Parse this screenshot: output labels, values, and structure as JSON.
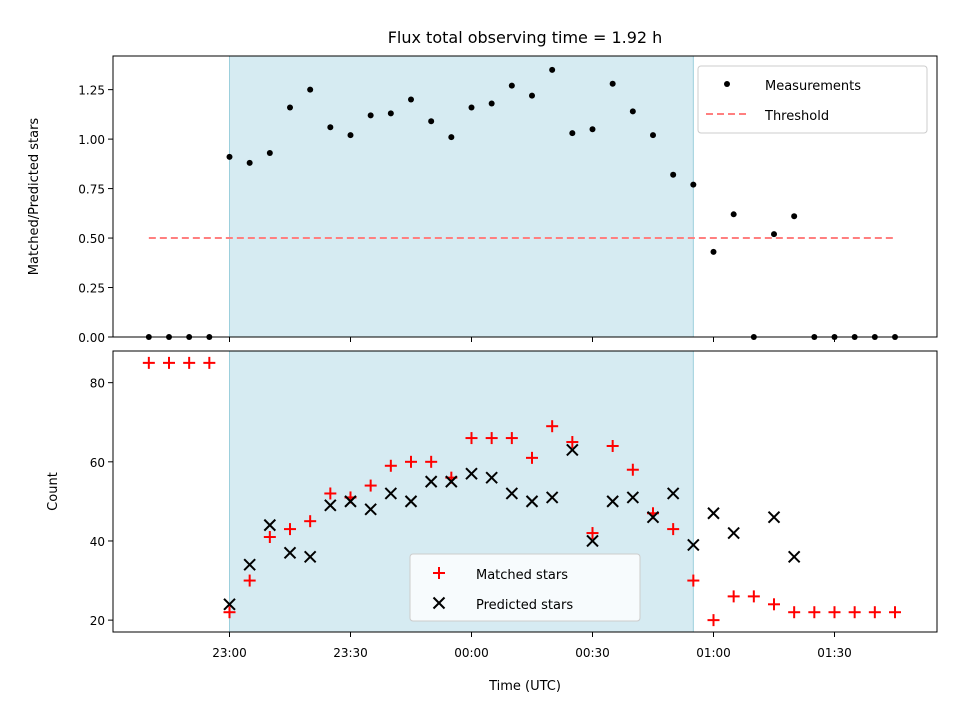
{
  "title": "Flux total observing time = 1.92 h",
  "chart_data": [
    {
      "type": "scatter",
      "title": "Flux total observing time = 1.92 h",
      "xlabel": "",
      "ylabel": "Matched/Predicted stars",
      "ylim": [
        0,
        1.42
      ],
      "yticks": [
        "0.00",
        "0.25",
        "0.50",
        "0.75",
        "1.00",
        "1.25"
      ],
      "yticks_values": [
        0,
        0.25,
        0.5,
        0.75,
        1.0,
        1.25
      ],
      "grid": false,
      "legend_location": "upper right",
      "shaded_span": [
        "23:00",
        "00:55"
      ],
      "shaded_color": "#add8e6",
      "series": [
        {
          "name": "Measurements",
          "marker": "dot",
          "color": "#000000",
          "x": [
            "22:40",
            "22:45",
            "22:50",
            "22:55",
            "23:00",
            "23:05",
            "23:10",
            "23:15",
            "23:20",
            "23:25",
            "23:30",
            "23:35",
            "23:40",
            "23:45",
            "23:50",
            "23:55",
            "00:00",
            "00:05",
            "00:10",
            "00:15",
            "00:20",
            "00:25",
            "00:30",
            "00:35",
            "00:40",
            "00:45",
            "00:50",
            "00:55",
            "01:00",
            "01:05",
            "01:10",
            "01:15",
            "01:20",
            "01:25",
            "01:30",
            "01:35",
            "01:40",
            "01:45"
          ],
          "y": [
            0,
            0,
            0,
            0,
            0.91,
            0.88,
            0.93,
            1.16,
            1.25,
            1.06,
            1.02,
            1.12,
            1.13,
            1.2,
            1.09,
            1.01,
            1.16,
            1.18,
            1.27,
            1.22,
            1.35,
            1.03,
            1.05,
            1.28,
            1.14,
            1.02,
            0.82,
            0.77,
            0.43,
            0.62,
            0,
            0.52,
            0.61,
            0,
            0,
            0,
            0,
            0
          ]
        },
        {
          "name": "Threshold",
          "marker": "dashed-line",
          "color": "#ff7f7f",
          "x": [
            "22:40",
            "01:45"
          ],
          "y": [
            0.5,
            0.5
          ]
        }
      ]
    },
    {
      "type": "scatter",
      "xlabel": "Time (UTC)",
      "ylabel": "Count",
      "ylim": [
        17,
        88
      ],
      "yticks": [
        "20",
        "40",
        "60",
        "80"
      ],
      "yticks_values": [
        20,
        40,
        60,
        80
      ],
      "xticks": [
        "23:00",
        "23:30",
        "00:00",
        "00:30",
        "01:00",
        "01:30"
      ],
      "grid": false,
      "legend_location": "lower center",
      "shaded_span": [
        "23:00",
        "00:55"
      ],
      "shaded_color": "#add8e6",
      "series": [
        {
          "name": "Matched stars",
          "marker": "plus",
          "color": "#ff0000",
          "x": [
            "22:40",
            "22:45",
            "22:50",
            "22:55",
            "23:00",
            "23:05",
            "23:10",
            "23:15",
            "23:20",
            "23:25",
            "23:30",
            "23:35",
            "23:40",
            "23:45",
            "23:50",
            "23:55",
            "00:00",
            "00:05",
            "00:10",
            "00:15",
            "00:20",
            "00:25",
            "00:30",
            "00:35",
            "00:40",
            "00:45",
            "00:50",
            "00:55",
            "01:00",
            "01:05",
            "01:10",
            "01:15",
            "01:20",
            "01:25",
            "01:30",
            "01:35",
            "01:40",
            "01:45"
          ],
          "y": [
            85,
            85,
            85,
            85,
            22,
            30,
            41,
            43,
            45,
            52,
            51,
            54,
            59,
            60,
            60,
            56,
            66,
            66,
            66,
            61,
            69,
            65,
            42,
            64,
            58,
            47,
            43,
            30,
            20,
            26,
            26,
            24,
            22,
            22,
            22,
            22,
            22,
            22
          ]
        },
        {
          "name": "Predicted stars",
          "marker": "x",
          "color": "#000000",
          "x": [
            "23:00",
            "23:05",
            "23:10",
            "23:15",
            "23:20",
            "23:25",
            "23:30",
            "23:35",
            "23:40",
            "23:45",
            "23:50",
            "23:55",
            "00:00",
            "00:05",
            "00:10",
            "00:15",
            "00:20",
            "00:25",
            "00:30",
            "00:35",
            "00:40",
            "00:45",
            "00:50",
            "00:55",
            "01:00",
            "01:05",
            "01:15",
            "01:20"
          ],
          "y": [
            24,
            34,
            44,
            37,
            36,
            49,
            50,
            48,
            52,
            50,
            55,
            55,
            57,
            56,
            52,
            50,
            51,
            63,
            40,
            50,
            51,
            46,
            52,
            39,
            47,
            42,
            46,
            36
          ]
        }
      ]
    }
  ]
}
